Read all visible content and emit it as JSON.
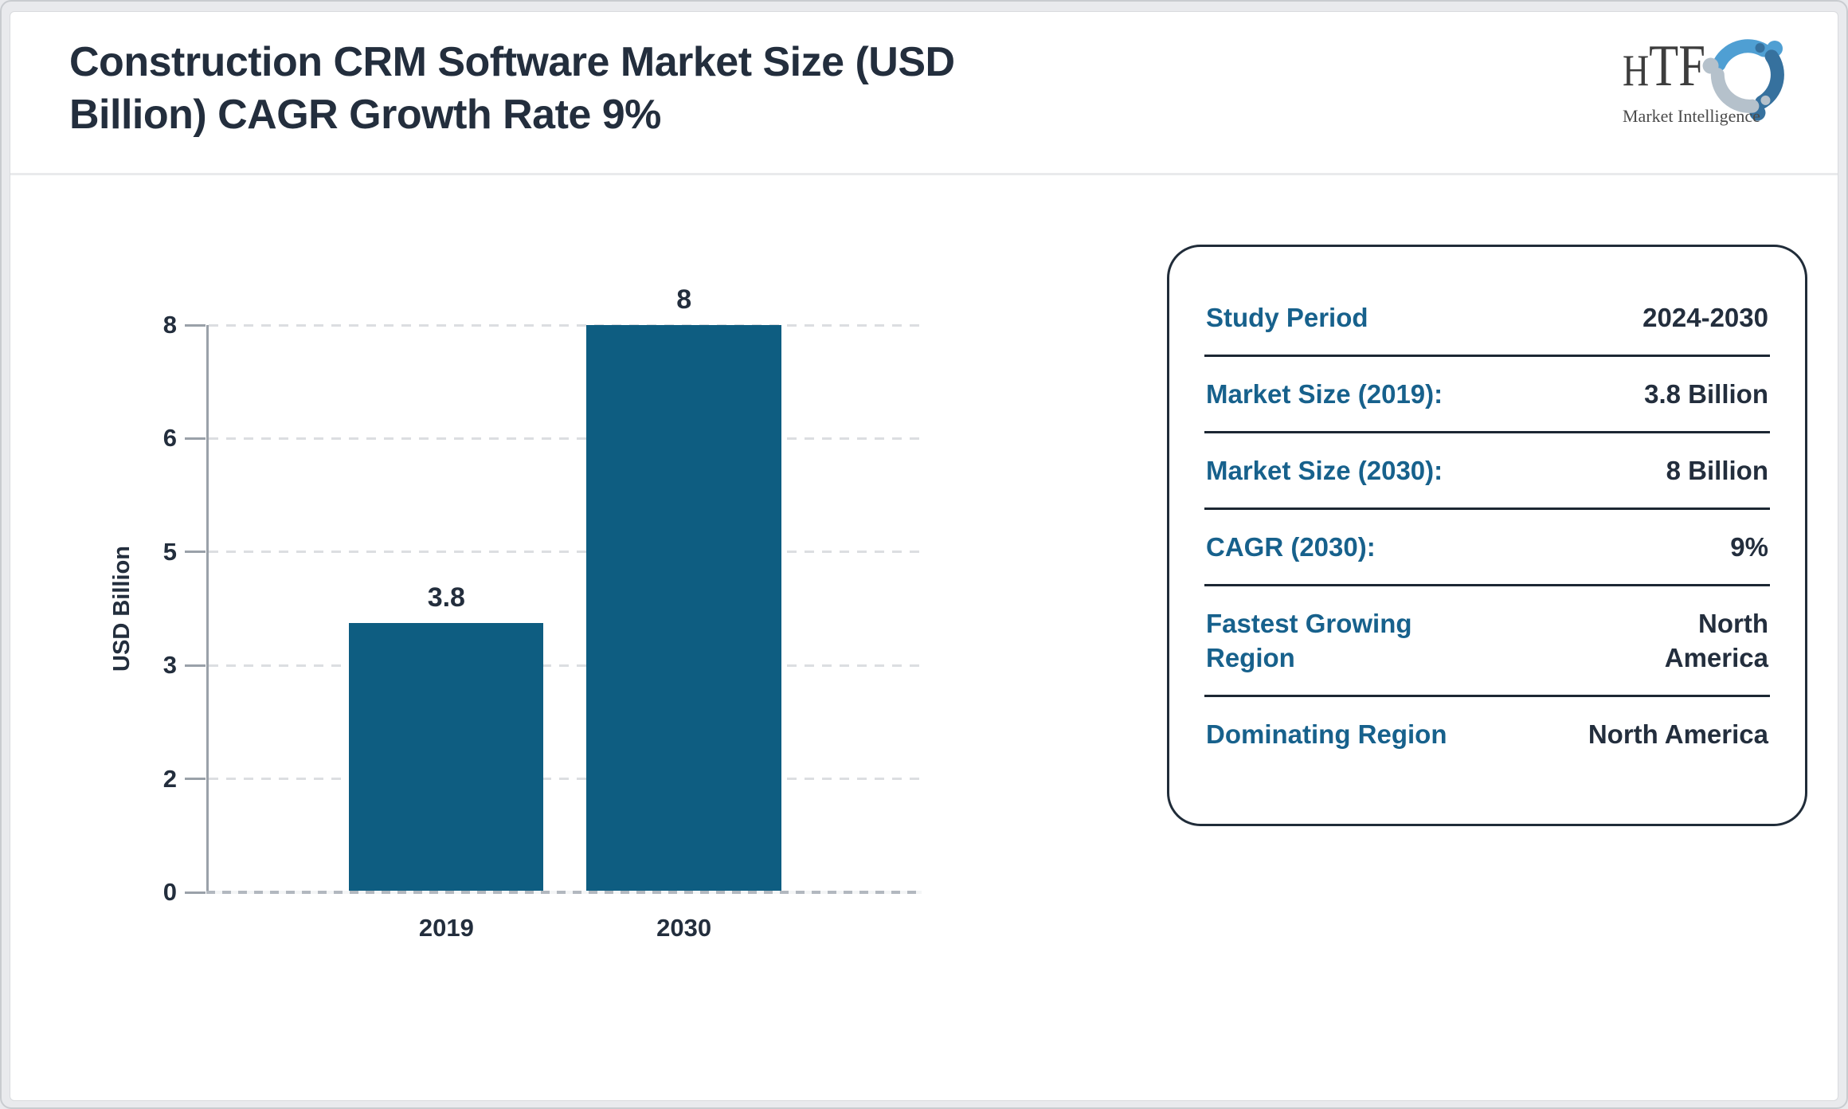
{
  "page": {
    "title_lines": [
      "Construction CRM Software Market Size (USD",
      "Billion) CAGR Growth Rate 9%"
    ],
    "title_full": "Construction CRM Software Market Size (USD Billion) CAGR Growth Rate 9%"
  },
  "logo": {
    "text": "HTF",
    "subtext": "Market Intelligence"
  },
  "colors": {
    "bar": "#0e5d81",
    "accent_teal": "#17618c",
    "navy": "#232e3d",
    "axis_gray": "#9aa1a9"
  },
  "chart_data": {
    "type": "bar",
    "title": "Construction CRM Software Market Size (USD Billion) CAGR Growth Rate 9%",
    "categories": [
      "2019",
      "2030"
    ],
    "values": [
      3.8,
      8
    ],
    "bar_labels": [
      "3.8",
      "8"
    ],
    "xlabel": "",
    "ylabel": "USD Billion",
    "ylim": [
      0,
      8
    ],
    "yticks": [
      0,
      2,
      3,
      5,
      6,
      8
    ],
    "grid": "horizontal dotted",
    "legend": "none",
    "bar_color": "#0e5d81"
  },
  "panel": {
    "rows": [
      {
        "label": "Study Period",
        "value": "2024-2030"
      },
      {
        "label": "Market Size (2019):",
        "value": "3.8 Billion"
      },
      {
        "label": "Market Size (2030):",
        "value": "8 Billion"
      },
      {
        "label": "CAGR (2030):",
        "value": "9%"
      },
      {
        "label": "Fastest Growing Region",
        "value": "North America"
      },
      {
        "label": "Dominating Region",
        "value": "North America"
      }
    ]
  }
}
